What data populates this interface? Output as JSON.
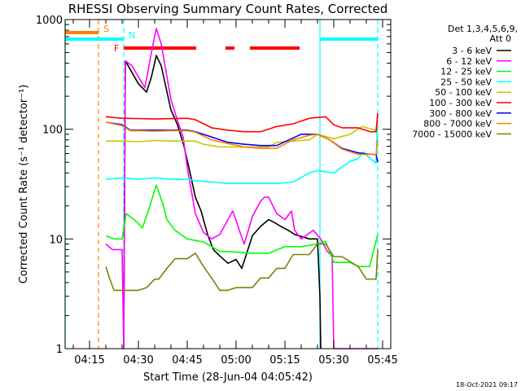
{
  "chart_data": {
    "type": "line",
    "title": "RHESSI Observing Summary Count Rates, Corrected",
    "xlabel": "Start Time (28-Jun-04 04:05:42)",
    "ylabel": "Corrected Count Rate (s⁻¹ detector⁻¹)",
    "x_units": "minutes after 04:00 UT",
    "xlim": [
      7.5,
      107.5
    ],
    "ylim": [
      1,
      1000
    ],
    "yscale": "log",
    "x_ticks": [
      {
        "v": 15,
        "label": "04:15"
      },
      {
        "v": 30,
        "label": "04:30"
      },
      {
        "v": 45,
        "label": "04:45"
      },
      {
        "v": 60,
        "label": "05:00"
      },
      {
        "v": 75,
        "label": "05:15"
      },
      {
        "v": 90,
        "label": "05:30"
      },
      {
        "v": 105,
        "label": "05:45"
      }
    ],
    "y_ticks": [
      {
        "v": 1,
        "label": "1"
      },
      {
        "v": 10,
        "label": "10"
      },
      {
        "v": 100,
        "label": "100"
      },
      {
        "v": 1000,
        "label": "1000"
      }
    ],
    "legend_header": [
      "Det 1,3,4,5,6,9,",
      "Att 0"
    ],
    "legend_position": "right",
    "series": [
      {
        "name": "3 - 6 keV",
        "color": "#000000",
        "x": [
          25.5,
          26,
          28,
          30,
          32.5,
          34,
          35.5,
          37,
          40,
          42,
          44,
          45.5,
          47.5,
          49.25,
          51.25,
          53,
          55,
          57.5,
          60,
          61.75,
          63,
          65,
          67.5,
          70,
          72,
          73.75,
          76,
          78,
          82.5,
          85,
          85.75,
          86
        ],
        "y": [
          1,
          420,
          330,
          260,
          218,
          300,
          470,
          380,
          150,
          110,
          70,
          45,
          24,
          18,
          11,
          8,
          7,
          6,
          6.5,
          5.4,
          7,
          10.7,
          13,
          15,
          14,
          13,
          12,
          11,
          10,
          10,
          3,
          1
        ]
      },
      {
        "name": "6 - 12 keV",
        "color": "#ff00ff",
        "x": [
          20,
          22,
          24,
          25,
          25.5,
          26,
          28,
          30,
          32,
          34,
          35.5,
          37,
          40,
          42,
          43.75,
          45,
          47.5,
          50,
          52.5,
          55,
          57.5,
          59,
          61,
          62.5,
          65,
          67.5,
          68.75,
          70,
          72.5,
          75,
          77,
          78,
          80,
          83.75,
          86,
          88,
          89.5,
          90,
          95,
          100,
          103.5
        ],
        "y": [
          9,
          8,
          8,
          8,
          1,
          420,
          380,
          300,
          240,
          500,
          830,
          600,
          187,
          120,
          85,
          45,
          17,
          11.5,
          10,
          11,
          15,
          18,
          12,
          9,
          16,
          22,
          24,
          24,
          17,
          15,
          18,
          12,
          10,
          12,
          10,
          7.7,
          7,
          1,
          1,
          1,
          1
        ]
      },
      {
        "name": "12 - 25 keV",
        "color": "#00ff00",
        "x": [
          20,
          22.5,
          25,
          26.25,
          28.75,
          31.25,
          33.75,
          35.5,
          37.5,
          38.75,
          41.25,
          45,
          50,
          55,
          60,
          65,
          70,
          75,
          80,
          85,
          87.5,
          90,
          95,
          97.5,
          101,
          103.5
        ],
        "y": [
          10.7,
          10,
          10,
          17,
          15,
          12.6,
          21,
          31,
          21,
          15,
          12,
          10,
          9.4,
          7.7,
          7.6,
          7.4,
          7.4,
          8.5,
          8.5,
          9,
          9.5,
          6.1,
          6.1,
          5.6,
          5.6,
          11
        ]
      },
      {
        "name": "25 - 50 keV",
        "color": "#00ffff",
        "x": [
          20,
          25,
          30,
          35,
          40,
          45,
          47.5,
          52.5,
          57.5,
          62.5,
          67.5,
          72.5,
          77.5,
          82.5,
          85,
          90,
          95,
          97.5,
          99,
          101.25,
          103,
          103.5
        ],
        "y": [
          35,
          36,
          35,
          36,
          35,
          35,
          34,
          33,
          32,
          32,
          32,
          32,
          33,
          40,
          42,
          40,
          51,
          54,
          62,
          54,
          49,
          140
        ]
      },
      {
        "name": "50 - 100 keV",
        "color": "#c8c800",
        "x": [
          20,
          25,
          30,
          35,
          40,
          45,
          47.5,
          50,
          55,
          60,
          65,
          70,
          72.5,
          77.5,
          82.5,
          85,
          90,
          95,
          98.75,
          101.25,
          103,
          103.5
        ],
        "y": [
          78,
          78,
          77,
          79,
          78,
          78,
          78,
          73,
          69,
          69,
          69,
          69,
          76,
          78,
          80,
          90,
          82,
          90,
          106,
          101,
          98,
          120
        ]
      },
      {
        "name": "100 - 300 keV",
        "color": "#ff0000",
        "x": [
          20,
          25,
          30,
          35,
          40,
          45,
          47.5,
          50,
          52.5,
          57.5,
          62.5,
          67.5,
          72.5,
          77.5,
          82.5,
          87.5,
          90,
          92.5,
          97.5,
          101.25,
          103,
          103.5
        ],
        "y": [
          130,
          126,
          125,
          124,
          125,
          126,
          122,
          112,
          103,
          98,
          95,
          95,
          106,
          112,
          126,
          130,
          110,
          103,
          103,
          95,
          95,
          140
        ]
      },
      {
        "name": "300 - 800 keV",
        "color": "#0000ff",
        "x": [
          20,
          25,
          27.5,
          30,
          35,
          40,
          45,
          47.5,
          52.5,
          57.5,
          62.5,
          67.5,
          72.5,
          76.25,
          80,
          85,
          88.75,
          92.5,
          97.5,
          101.25,
          103,
          103.5
        ],
        "y": [
          116,
          110,
          98,
          98,
          98,
          98,
          98,
          95,
          85,
          76,
          73,
          71,
          71,
          80,
          90,
          90,
          80,
          67,
          61,
          59,
          59,
          50
        ]
      },
      {
        "name": "800 - 7000 keV",
        "color": "#ff8000",
        "x": [
          20,
          25,
          27.5,
          30,
          35,
          40,
          45,
          47.5,
          52.5,
          57.5,
          62.5,
          67.5,
          72.5,
          77.5,
          82.5,
          85,
          88.75,
          92.5,
          97.5,
          101.25,
          103,
          103.5
        ],
        "y": [
          116,
          108,
          97,
          97,
          96,
          97,
          97,
          94,
          80,
          74,
          69,
          67,
          67,
          80,
          88,
          90,
          80,
          66,
          59,
          59,
          59,
          80
        ]
      },
      {
        "name": "7000 - 15000 keV",
        "color": "#808000",
        "x": [
          20,
          21.25,
          22.5,
          25,
          30,
          32.5,
          35,
          36.25,
          38.75,
          41.25,
          45,
          47.5,
          50,
          52.5,
          55,
          57.5,
          60,
          62.5,
          65,
          67.5,
          70,
          72.5,
          75,
          77.5,
          80,
          82.5,
          85,
          87.5,
          90,
          92.5,
          97.5,
          100,
          103,
          103.5
        ],
        "y": [
          5.6,
          4.3,
          3.4,
          3.4,
          3.4,
          3.6,
          4.3,
          4.3,
          5.4,
          6.6,
          6.6,
          7.4,
          5.6,
          4.4,
          3.4,
          3.4,
          3.6,
          3.6,
          3.6,
          4.4,
          4.4,
          5.4,
          5.4,
          7.2,
          7.2,
          7.2,
          9,
          9,
          6.9,
          6.9,
          5.6,
          4.3,
          4.3,
          8
        ]
      }
    ],
    "annotations": {
      "bars": [
        {
          "label": "S",
          "color": "#ff8000",
          "from": 7.5,
          "to": 17.75,
          "level": "top"
        },
        {
          "label": "N",
          "color": "#00ffff",
          "from": 7.5,
          "to": 25.5,
          "level": "middle"
        },
        {
          "label": "",
          "color": "#00ffff",
          "from": 85.75,
          "to": 103.5,
          "level": "middle"
        },
        {
          "label": "F",
          "color": "#ff0000",
          "from": 25.5,
          "to": 47.75,
          "level": "low"
        },
        {
          "label": "",
          "color": "#ff0000",
          "from": 56.75,
          "to": 59.5,
          "level": "low"
        },
        {
          "label": "",
          "color": "#ff0000",
          "from": 64.25,
          "to": 79.5,
          "level": "low"
        }
      ],
      "vlines": [
        {
          "x": 7.5,
          "color": "#00ffff",
          "style": "solid"
        },
        {
          "x": 17.75,
          "color": "#ff8000",
          "style": "dashed"
        },
        {
          "x": 25.5,
          "color": "#00ffff",
          "style": "dashed"
        },
        {
          "x": 85.75,
          "color": "#00ffff",
          "style": "solid"
        },
        {
          "x": 103.5,
          "color": "#00ffff",
          "style": "dashed"
        }
      ]
    }
  },
  "footer": {
    "timestamp": "18-Oct-2021 09:17"
  }
}
